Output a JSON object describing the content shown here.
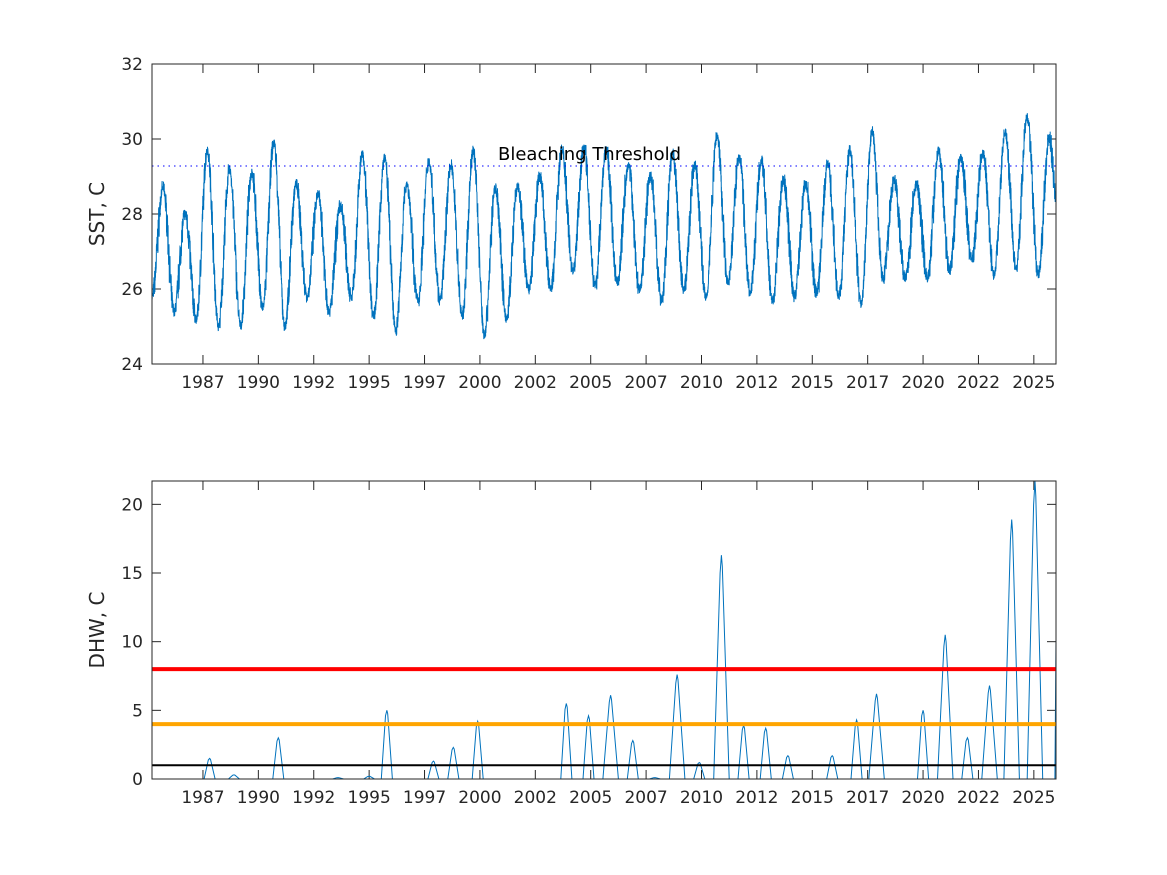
{
  "chart_data": [
    {
      "type": "line",
      "ylabel": "SST, C",
      "xlim": [
        1985.2,
        2026.0
      ],
      "ylim": [
        24,
        32
      ],
      "x_tick_positions": [
        1987.5,
        1990,
        1992.5,
        1995,
        1997.5,
        2000,
        2002.5,
        2005,
        2007.5,
        2010,
        2012.5,
        2015,
        2017.5,
        2020,
        2022.5,
        2025
      ],
      "x_tick_labels": [
        "1987",
        "1990",
        "1992",
        "1995",
        "1997",
        "2000",
        "2002",
        "2005",
        "2007",
        "2010",
        "2012",
        "2015",
        "2017",
        "2020",
        "2022",
        "2025"
      ],
      "y_ticks": [
        24,
        26,
        28,
        30,
        32
      ],
      "y_tick_labels": [
        "24",
        "26",
        "28",
        "30",
        "32"
      ],
      "grid": false,
      "line_color": "#0072BD",
      "threshold": {
        "label": "Bleaching Threshold",
        "value": 29.28,
        "color": "#0000FF",
        "style": "dotted"
      },
      "series": [
        {
          "description_of_values": "annual SST maxima (approx., peak near year + 0.7)",
          "years": [
            1985,
            1986,
            1987,
            1988,
            1989,
            1990,
            1991,
            1992,
            1993,
            1994,
            1995,
            1996,
            1997,
            1998,
            1999,
            2000,
            2001,
            2002,
            2003,
            2004,
            2005,
            2006,
            2007,
            2008,
            2009,
            2010,
            2011,
            2012,
            2013,
            2014,
            2015,
            2016,
            2017,
            2018,
            2019,
            2020,
            2021,
            2022,
            2023,
            2024,
            2025
          ],
          "annual_max": [
            28.7,
            28.0,
            29.7,
            29.2,
            29.1,
            29.9,
            28.8,
            28.5,
            28.2,
            29.6,
            29.5,
            28.8,
            29.4,
            29.3,
            29.7,
            28.7,
            28.7,
            29.0,
            29.7,
            29.8,
            29.7,
            29.3,
            29.0,
            29.6,
            29.3,
            30.1,
            29.5,
            29.4,
            28.9,
            28.8,
            29.3,
            29.7,
            30.2,
            28.9,
            28.8,
            29.7,
            29.5,
            29.6,
            30.2,
            30.6,
            30.0
          ],
          "annual_min_years": [
            1986,
            1987,
            1988,
            1989,
            1990,
            1991,
            1992,
            1993,
            1994,
            1995,
            1996,
            1997,
            1998,
            1999,
            2000,
            2001,
            2002,
            2003,
            2004,
            2005,
            2006,
            2007,
            2008,
            2009,
            2010,
            2011,
            2012,
            2013,
            2014,
            2015,
            2016,
            2017,
            2018,
            2019,
            2020,
            2021,
            2022,
            2023,
            2024,
            2025
          ],
          "annual_min": [
            25.4,
            25.2,
            25.0,
            25.0,
            25.5,
            25.0,
            25.8,
            25.4,
            25.8,
            25.3,
            24.9,
            25.7,
            25.7,
            25.3,
            24.8,
            25.2,
            26.0,
            26.0,
            26.5,
            26.1,
            26.2,
            26.0,
            25.7,
            26.0,
            25.8,
            26.2,
            25.9,
            25.7,
            25.8,
            25.9,
            25.8,
            25.6,
            26.3,
            26.3,
            26.3,
            26.5,
            26.8,
            26.4,
            26.6,
            26.4
          ],
          "start": [
            1985.2,
            25.8
          ],
          "end": [
            2026.0,
            28.5
          ]
        }
      ]
    },
    {
      "type": "line",
      "ylabel": "DHW, C",
      "xlim": [
        1985.2,
        2026.0
      ],
      "ylim": [
        0,
        21.7
      ],
      "x_tick_positions": [
        1987.5,
        1990,
        1992.5,
        1995,
        1997.5,
        2000,
        2002.5,
        2005,
        2007.5,
        2010,
        2012.5,
        2015,
        2017.5,
        2020,
        2022.5,
        2025
      ],
      "x_tick_labels": [
        "1987",
        "1990",
        "1992",
        "1995",
        "1997",
        "2000",
        "2002",
        "2005",
        "2007",
        "2010",
        "2012",
        "2015",
        "2017",
        "2020",
        "2022",
        "2025"
      ],
      "y_ticks": [
        0,
        5,
        10,
        15,
        20
      ],
      "y_tick_labels": [
        "0",
        "5",
        "10",
        "15",
        "20"
      ],
      "grid": false,
      "line_color": "#0072BD",
      "reference_lines": [
        {
          "value": 8,
          "color": "#FF0000"
        },
        {
          "value": 4,
          "color": "#FFA500"
        },
        {
          "value": 1,
          "color": "#000000"
        }
      ],
      "series": [
        {
          "peaks_year": [
            1987.8,
            1988.9,
            1990.9,
            1993.6,
            1995.0,
            1995.8,
            1997.9,
            1998.8,
            1999.9,
            2003.9,
            2004.9,
            2005.9,
            2006.9,
            2007.9,
            2008.9,
            2009.9,
            2010.9,
            2011.9,
            2012.9,
            2013.9,
            2015.9,
            2017.0,
            2017.9,
            2020.0,
            2021.0,
            2022.0,
            2023.0,
            2024.0,
            2025.05
          ],
          "peaks_dhw": [
            1.5,
            0.3,
            3.0,
            0.1,
            0.2,
            5.0,
            1.3,
            2.3,
            4.2,
            5.5,
            4.6,
            6.1,
            2.8,
            0.1,
            7.6,
            1.2,
            16.3,
            3.9,
            3.7,
            1.7,
            1.7,
            4.3,
            6.2,
            5.0,
            10.5,
            3.0,
            6.8,
            18.9,
            21.7
          ],
          "end": [
            2026.0,
            10.2
          ]
        }
      ]
    }
  ]
}
